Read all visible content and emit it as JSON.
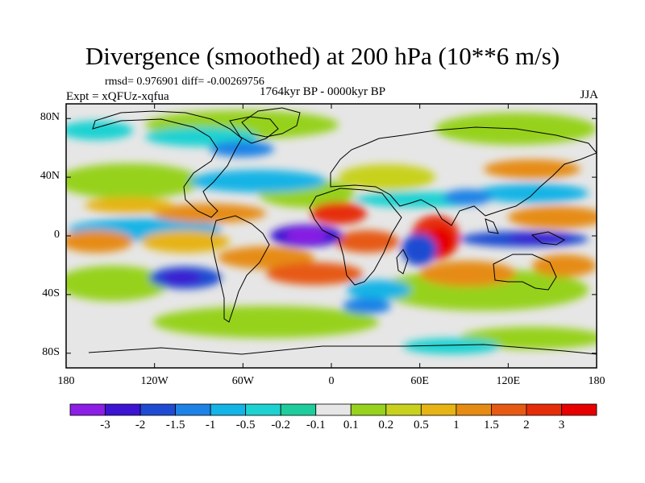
{
  "title": "Divergence (smoothed) at 200 hPa (10**6 m/s)",
  "stats": "rmsd= 0.976901 diff= -0.00269756",
  "experiment": "Expt = xQFUz-xqfua",
  "period": "1764kyr BP - 0000kyr BP",
  "season": "JJA",
  "map": {
    "projection": "cylindrical equidistant",
    "lon_range": [
      -180,
      180
    ],
    "lat_range": [
      -90,
      90
    ],
    "lat_ticks": [
      {
        "value": 80,
        "label": "80N"
      },
      {
        "value": 40,
        "label": "40N"
      },
      {
        "value": 0,
        "label": "0"
      },
      {
        "value": -40,
        "label": "40S"
      },
      {
        "value": -80,
        "label": "80S"
      }
    ],
    "lon_ticks": [
      {
        "value": -180,
        "label": "180"
      },
      {
        "value": -120,
        "label": "120W"
      },
      {
        "value": -60,
        "label": "60W"
      },
      {
        "value": 0,
        "label": "0"
      },
      {
        "value": 60,
        "label": "60E"
      },
      {
        "value": 120,
        "label": "120E"
      },
      {
        "value": 180,
        "label": "180"
      }
    ]
  },
  "colorbar": {
    "labels": [
      "-3",
      "-2",
      "-1.5",
      "-1",
      "-0.5",
      "-0.2",
      "-0.1",
      "0.1",
      "0.2",
      "0.5",
      "1",
      "1.5",
      "2",
      "3"
    ],
    "colors": [
      "#8c1ee6",
      "#3c14d2",
      "#1e4bd2",
      "#1e82e6",
      "#14b4e6",
      "#1ed2d2",
      "#1ecd9b",
      "#e6e6e6",
      "#96d21e",
      "#c8d21e",
      "#e6b414",
      "#e68c14",
      "#e65a14",
      "#e62d0a",
      "#e60000"
    ]
  }
}
